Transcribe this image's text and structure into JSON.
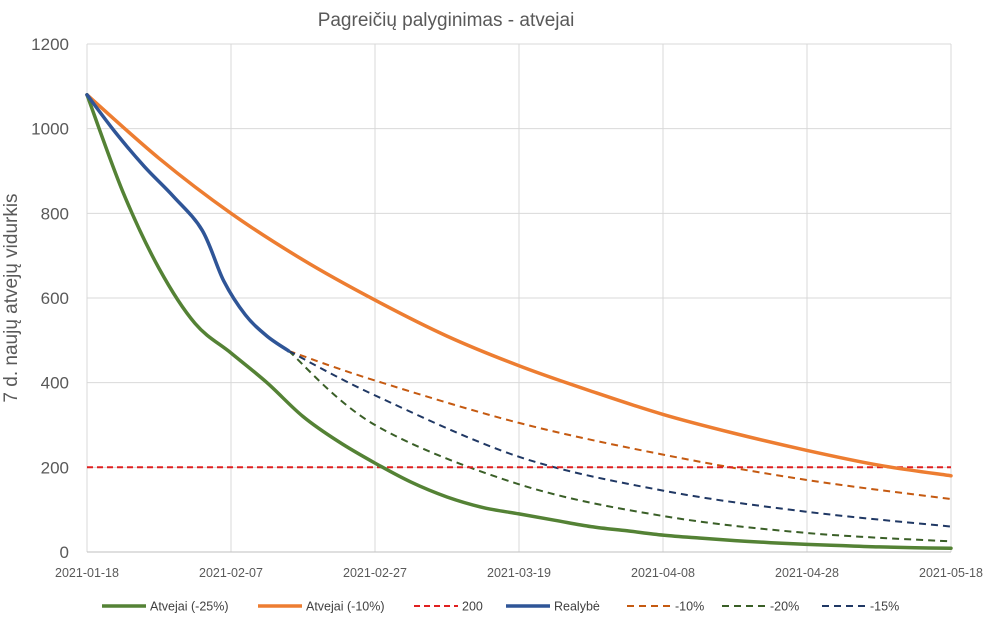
{
  "chart_data": {
    "type": "line",
    "title": "Pagreičių palyginimas - atvejai",
    "xlabel": "",
    "ylabel": "7 d. naujų atvejų vidurkis",
    "x_ticks": [
      "2021-01-18",
      "2021-02-07",
      "2021-02-27",
      "2021-03-19",
      "2021-04-08",
      "2021-04-28",
      "2021-05-18"
    ],
    "xlim": [
      "2021-01-18",
      "2021-05-18"
    ],
    "ylim": [
      0,
      1200
    ],
    "y_ticks": [
      0,
      200,
      400,
      600,
      800,
      1000,
      1200
    ],
    "grid": true,
    "legend": "bottom",
    "series": [
      {
        "name": "Atvejai (-25%)",
        "color": "#548235",
        "dash": "solid",
        "x": [
          "2021-01-18",
          "2021-01-23",
          "2021-01-28",
          "2021-02-02",
          "2021-02-07",
          "2021-02-12",
          "2021-02-17",
          "2021-02-22",
          "2021-02-27",
          "2021-03-04",
          "2021-03-09",
          "2021-03-14",
          "2021-03-19",
          "2021-03-24",
          "2021-03-29",
          "2021-04-03",
          "2021-04-08",
          "2021-04-13",
          "2021-04-18",
          "2021-04-23",
          "2021-04-28",
          "2021-05-03",
          "2021-05-08",
          "2021-05-13",
          "2021-05-18"
        ],
        "values": [
          1080,
          850,
          670,
          540,
          470,
          400,
          320,
          260,
          210,
          165,
          130,
          105,
          90,
          75,
          60,
          50,
          40,
          33,
          27,
          22,
          18,
          15,
          12,
          10,
          9
        ]
      },
      {
        "name": "Atvejai (-10%)",
        "color": "#ed7d31",
        "dash": "solid",
        "x": [
          "2021-01-18",
          "2021-01-28",
          "2021-02-07",
          "2021-02-17",
          "2021-02-27",
          "2021-03-09",
          "2021-03-19",
          "2021-03-29",
          "2021-04-08",
          "2021-04-18",
          "2021-04-28",
          "2021-05-08",
          "2021-05-18"
        ],
        "values": [
          1080,
          930,
          800,
          690,
          595,
          510,
          440,
          380,
          325,
          280,
          240,
          205,
          180
        ]
      },
      {
        "name": "200",
        "color": "#e02020",
        "dash": "dash",
        "x": [
          "2021-01-18",
          "2021-05-18"
        ],
        "values": [
          200,
          200
        ]
      },
      {
        "name": "Realybė",
        "color": "#2f5597",
        "dash": "solid",
        "x": [
          "2021-01-18",
          "2021-01-22",
          "2021-01-26",
          "2021-01-30",
          "2021-02-03",
          "2021-02-06",
          "2021-02-09",
          "2021-02-12",
          "2021-02-15"
        ],
        "values": [
          1080,
          990,
          910,
          840,
          760,
          640,
          560,
          510,
          475
        ]
      },
      {
        "name": "-10%",
        "color": "#c55a11",
        "dash": "dash",
        "x": [
          "2021-02-15",
          "2021-02-27",
          "2021-03-19",
          "2021-04-08",
          "2021-04-28",
          "2021-05-18"
        ],
        "values": [
          475,
          405,
          305,
          230,
          170,
          125
        ]
      },
      {
        "name": "-20%",
        "color": "#3a5f27",
        "dash": "dash",
        "x": [
          "2021-02-15",
          "2021-02-27",
          "2021-03-19",
          "2021-04-08",
          "2021-04-28",
          "2021-05-18"
        ],
        "values": [
          475,
          300,
          160,
          85,
          45,
          25
        ]
      },
      {
        "name": "-15%",
        "color": "#203864",
        "dash": "dash",
        "x": [
          "2021-02-15",
          "2021-02-27",
          "2021-03-19",
          "2021-04-08",
          "2021-04-28",
          "2021-05-18"
        ],
        "values": [
          475,
          370,
          225,
          145,
          95,
          60
        ]
      }
    ]
  }
}
